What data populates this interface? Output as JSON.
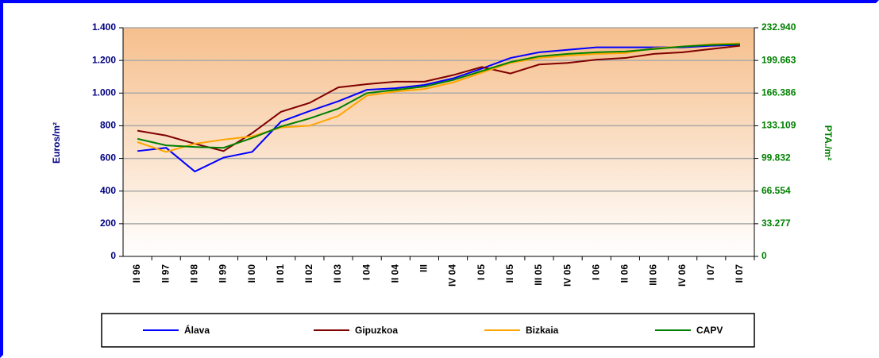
{
  "chart_data": {
    "type": "line",
    "y_label": "Euros/m²",
    "y2_label": "PTA./m²",
    "categories": [
      "II 96",
      "II 97",
      "II 98",
      "II 99",
      "II 00",
      "II 01",
      "II 02",
      "II 03",
      "I 04",
      "II 04",
      "III",
      "IV 04",
      "I 05",
      "II 05",
      "III 05",
      "IV 05",
      "I 06",
      "II 06",
      "III 06",
      "IV 06",
      "I 07",
      "II 07"
    ],
    "series": [
      {
        "name": "Álava",
        "color": "#0000ff",
        "values": [
          645,
          665,
          520,
          605,
          640,
          825,
          890,
          950,
          1020,
          1030,
          1050,
          1090,
          1150,
          1215,
          1250,
          1265,
          1280,
          1280,
          1280,
          1280,
          1290,
          1295
        ]
      },
      {
        "name": "Gipuzkoa",
        "color": "#800000",
        "values": [
          770,
          740,
          690,
          645,
          755,
          885,
          940,
          1035,
          1055,
          1070,
          1070,
          1110,
          1160,
          1120,
          1175,
          1185,
          1205,
          1215,
          1240,
          1250,
          1270,
          1290
        ]
      },
      {
        "name": "Bizkaia",
        "color": "#ffa500",
        "values": [
          700,
          640,
          690,
          715,
          735,
          790,
          800,
          860,
          985,
          1010,
          1025,
          1065,
          1125,
          1185,
          1215,
          1230,
          1240,
          1245,
          1275,
          1285,
          1300,
          1305
        ]
      },
      {
        "name": "CAPV",
        "color": "#008000",
        "values": [
          720,
          680,
          670,
          665,
          725,
          795,
          845,
          905,
          1000,
          1020,
          1040,
          1080,
          1135,
          1190,
          1225,
          1240,
          1250,
          1255,
          1270,
          1285,
          1295,
          1300
        ]
      }
    ],
    "ylim": [
      0,
      1400
    ],
    "yticks": [
      0,
      200,
      400,
      600,
      800,
      {
        "value": 1000,
        "label": "1.000"
      },
      {
        "value": 1200,
        "label": "1.200"
      },
      {
        "value": 1400,
        "label": "1.400"
      }
    ],
    "y2lim": [
      0,
      232940
    ],
    "y2ticks": [
      0,
      {
        "value": 33277,
        "label": "33.277"
      },
      {
        "value": 66554,
        "label": "66.554"
      },
      {
        "value": 99832,
        "label": "99.832"
      },
      {
        "value": 133109,
        "label": "133.109"
      },
      {
        "value": 166386,
        "label": "166.386"
      },
      {
        "value": 199663,
        "label": "199.663"
      },
      {
        "value": 232940,
        "label": "232.940"
      }
    ],
    "grid": true
  }
}
